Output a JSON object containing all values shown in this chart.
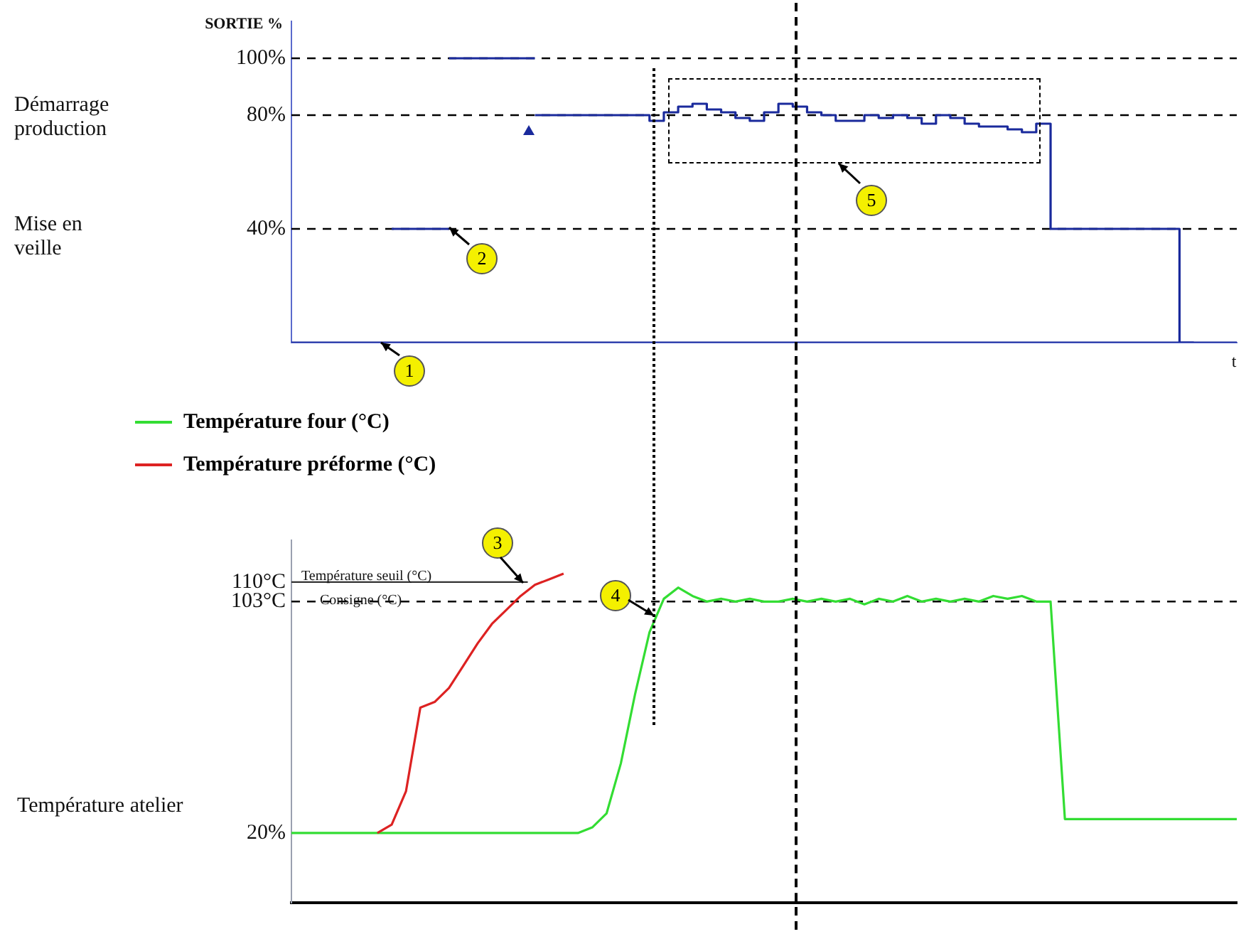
{
  "chart_data": [
    {
      "type": "step",
      "ylabel": "SORTIE %",
      "xlabel": "t",
      "categories": [
        null,
        null,
        null,
        null,
        null,
        null,
        null,
        null,
        null,
        null,
        null,
        null,
        null,
        null,
        null,
        null,
        null,
        null,
        null,
        null,
        null,
        null,
        null,
        null,
        null,
        null,
        null,
        null,
        null,
        null,
        null,
        null,
        null,
        null,
        null,
        null,
        null,
        null,
        null,
        null,
        null,
        null,
        null,
        null,
        null,
        null,
        null,
        null,
        null,
        null,
        null,
        null,
        null,
        null,
        null,
        null,
        null,
        null,
        null,
        null,
        null,
        null,
        null,
        null,
        null,
        null,
        null
      ],
      "series": [
        {
          "color": "#1a2a9c",
          "values": [
            0,
            0,
            0,
            0,
            0,
            0,
            0,
            0,
            0,
            0,
            0,
            0,
            0,
            0,
            0,
            0,
            0,
            0,
            0,
            0,
            0,
            0,
            0,
            0,
            0,
            0,
            0,
            0,
            0,
            0,
            0,
            0,
            0,
            0,
            0,
            0,
            0,
            0,
            0,
            0,
            0,
            0,
            0,
            0,
            0,
            0,
            0,
            0,
            0,
            0,
            0,
            0,
            0,
            0,
            0,
            0,
            0,
            0,
            0,
            0,
            0,
            0,
            0,
            0,
            0,
            0,
            0
          ]
        },
        {
          "color": "#1a2a9c",
          "values": [
            null,
            null,
            null,
            null,
            null,
            null,
            null,
            40,
            40,
            40,
            40,
            40,
            null,
            null,
            null,
            null,
            null,
            null,
            null,
            null,
            null,
            null,
            null,
            null,
            null,
            null,
            null,
            null,
            null,
            null,
            null,
            null,
            null,
            null,
            null,
            null,
            null,
            null,
            null,
            null,
            null,
            null,
            null,
            null,
            null,
            null,
            null,
            null,
            null,
            null,
            null,
            null,
            null,
            null,
            null,
            null,
            null,
            null,
            null,
            null,
            null,
            null,
            null,
            null,
            null,
            null,
            null
          ]
        },
        {
          "color": "#1a2a9c",
          "values": [
            null,
            null,
            null,
            null,
            null,
            null,
            null,
            null,
            null,
            null,
            null,
            100,
            100,
            100,
            100,
            100,
            100,
            100,
            null,
            null,
            null,
            null,
            null,
            null,
            null,
            null,
            null,
            null,
            null,
            null,
            null,
            null,
            null,
            null,
            null,
            null,
            null,
            null,
            null,
            null,
            null,
            null,
            null,
            null,
            null,
            null,
            null,
            null,
            null,
            null,
            null,
            null,
            null,
            null,
            null,
            null,
            null,
            null,
            null,
            null,
            null,
            null,
            null,
            null,
            null,
            null,
            null
          ]
        },
        {
          "color": "#1a2a9c",
          "values": [
            null,
            null,
            null,
            null,
            null,
            null,
            null,
            null,
            null,
            null,
            null,
            null,
            null,
            null,
            null,
            null,
            null,
            80,
            80,
            80,
            80,
            80,
            80,
            80,
            80,
            80,
            78,
            81,
            83,
            84,
            82,
            81,
            79,
            78,
            81,
            84,
            83,
            81,
            80,
            78,
            78,
            80,
            79,
            80,
            79,
            77,
            80,
            79,
            77,
            76,
            76,
            75,
            74,
            77,
            40,
            40,
            40,
            40,
            40,
            40,
            40,
            40,
            40,
            0,
            null,
            null,
            null
          ]
        }
      ],
      "ylim": [
        0,
        113
      ],
      "yticks": [
        {
          "value": 40,
          "label": "40%"
        },
        {
          "value": 80,
          "label": "80%"
        },
        {
          "value": 100,
          "label": "100%"
        }
      ],
      "tick_labels": "y",
      "grid": false,
      "legend": false,
      "ref_lines": [
        {
          "axis": "y",
          "value": 100,
          "line_style": "dashed",
          "color": "#000000"
        },
        {
          "axis": "y",
          "value": 80,
          "line_style": "dashed",
          "color": "#000000"
        },
        {
          "axis": "y",
          "value": 40,
          "line_style": "dashed",
          "color": "#000000"
        }
      ],
      "annotations": [
        "Démarrage production",
        "Mise en veille",
        "1",
        "2",
        "5"
      ]
    },
    {
      "type": "line",
      "categories": [
        null,
        null,
        null,
        null,
        null,
        null,
        null,
        null,
        null,
        null,
        null,
        null,
        null,
        null,
        null,
        null,
        null,
        null,
        null,
        null,
        null,
        null,
        null,
        null,
        null,
        null,
        null,
        null,
        null,
        null,
        null,
        null,
        null,
        null,
        null,
        null,
        null,
        null,
        null,
        null,
        null,
        null,
        null,
        null,
        null,
        null,
        null,
        null,
        null,
        null,
        null,
        null,
        null,
        null,
        null,
        null,
        null,
        null,
        null,
        null,
        null,
        null,
        null,
        null,
        null,
        null,
        null
      ],
      "series": [
        {
          "name": "Température four (°C)",
          "color": "#33dd33",
          "values": [
            20,
            20,
            20,
            20,
            20,
            20,
            20,
            20,
            20,
            20,
            20,
            20,
            20,
            20,
            20,
            20,
            20,
            20,
            20,
            20,
            20,
            22,
            27,
            45,
            70,
            92,
            104,
            108,
            105,
            103,
            104,
            103,
            104,
            103,
            103,
            104,
            103,
            104,
            103,
            104,
            102,
            104,
            103,
            105,
            103,
            104,
            103,
            104,
            103,
            105,
            104,
            105,
            103,
            103,
            25,
            25,
            25,
            25,
            25,
            25,
            25,
            25,
            25,
            25,
            25,
            25,
            25
          ]
        },
        {
          "name": "Température préforme (°C)",
          "color": "#dd2222",
          "values": [
            null,
            null,
            null,
            null,
            null,
            null,
            20,
            23,
            35,
            65,
            67,
            72,
            80,
            88,
            95,
            100,
            105,
            109,
            111,
            113,
            null,
            null,
            null,
            null,
            null,
            null,
            null,
            null,
            null,
            null,
            null,
            null,
            null,
            null,
            null,
            null,
            null,
            null,
            null,
            null,
            null,
            null,
            null,
            null,
            null,
            null,
            null,
            null,
            null,
            null,
            null,
            null,
            null,
            null,
            null,
            null,
            null,
            null,
            null,
            null,
            null,
            null,
            null,
            null,
            null,
            null,
            null
          ]
        }
      ],
      "ylim": [
        -5,
        125
      ],
      "yticks": [
        {
          "value": 20,
          "label": "20%"
        },
        {
          "value": 103,
          "label": "103°C"
        },
        {
          "value": 110,
          "label": "110°C"
        }
      ],
      "tick_labels": "y",
      "grid": false,
      "legend": "top left",
      "ref_lines": [
        {
          "axis": "y",
          "value": 110,
          "line_style": "solid",
          "color": "#333333"
        },
        {
          "axis": "y",
          "value": 103,
          "line_style": "dashed",
          "color": "#000000"
        }
      ],
      "annotations": [
        "Température atelier",
        "Température seuil (°C)",
        "Consigne (°C)",
        "3",
        "4"
      ]
    }
  ]
}
